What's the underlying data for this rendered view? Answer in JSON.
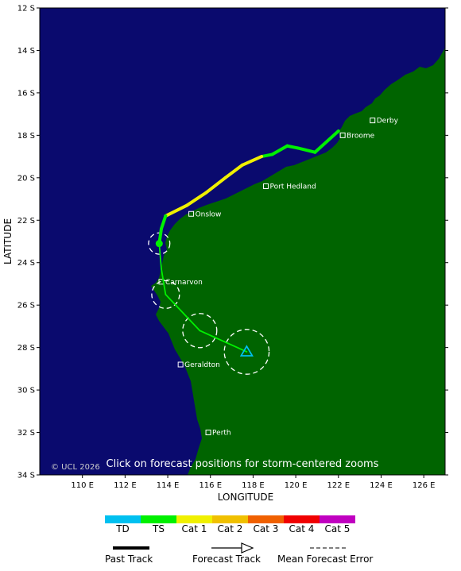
{
  "map": {
    "lon_range": [
      108,
      127
    ],
    "lat_range": [
      -34,
      -12
    ],
    "colors": {
      "ocean": "#0a0a6e",
      "land": "#006400"
    },
    "lat_ticks": [
      {
        "lat": -12,
        "label": "12 S"
      },
      {
        "lat": -14,
        "label": "14 S"
      },
      {
        "lat": -16,
        "label": "16 S"
      },
      {
        "lat": -18,
        "label": "18 S"
      },
      {
        "lat": -20,
        "label": "20 S"
      },
      {
        "lat": -22,
        "label": "22 S"
      },
      {
        "lat": -24,
        "label": "24 S"
      },
      {
        "lat": -26,
        "label": "26 S"
      },
      {
        "lat": -28,
        "label": "28 S"
      },
      {
        "lat": -30,
        "label": "30 S"
      },
      {
        "lat": -32,
        "label": "32 S"
      },
      {
        "lat": -34,
        "label": "34 S"
      }
    ],
    "lon_ticks": [
      {
        "lon": 110,
        "label": "110 E"
      },
      {
        "lon": 112,
        "label": "112 E"
      },
      {
        "lon": 114,
        "label": "114 E"
      },
      {
        "lon": 116,
        "label": "116 E"
      },
      {
        "lon": 118,
        "label": "118 E"
      },
      {
        "lon": 120,
        "label": "120 E"
      },
      {
        "lon": 122,
        "label": "122 E"
      },
      {
        "lon": 124,
        "label": "124 E"
      },
      {
        "lon": 126,
        "label": "126 E"
      }
    ],
    "xlabel": "LONGITUDE",
    "ylabel": "LATITUDE",
    "notice": "Click on forecast positions for storm-centered zooms",
    "copyright": "© UCL 2026",
    "cities": [
      {
        "name": "Derby",
        "lon": 123.6,
        "lat": -17.3
      },
      {
        "name": "Broome",
        "lon": 122.2,
        "lat": -18.0
      },
      {
        "name": "Port Hedland",
        "lon": 118.6,
        "lat": -20.4
      },
      {
        "name": "Onslow",
        "lon": 115.1,
        "lat": -21.7
      },
      {
        "name": "Carnarvon",
        "lon": 113.7,
        "lat": -24.9
      },
      {
        "name": "Geraldton",
        "lon": 114.6,
        "lat": -28.8
      },
      {
        "name": "Perth",
        "lon": 115.9,
        "lat": -32.0
      }
    ],
    "past_track": [
      {
        "lon": 122.0,
        "lat": -17.8,
        "cat": "TD"
      },
      {
        "lon": 120.9,
        "lat": -18.8,
        "cat": "TS"
      },
      {
        "lon": 120.1,
        "lat": -18.6,
        "cat": "TS"
      },
      {
        "lon": 119.6,
        "lat": -18.5,
        "cat": "TS"
      },
      {
        "lon": 118.9,
        "lat": -18.9,
        "cat": "TS"
      },
      {
        "lon": 118.4,
        "lat": -19.0,
        "cat": "TS"
      },
      {
        "lon": 117.5,
        "lat": -19.4,
        "cat": "Cat 1"
      },
      {
        "lon": 116.7,
        "lat": -20.0,
        "cat": "Cat 1"
      },
      {
        "lon": 115.8,
        "lat": -20.7,
        "cat": "Cat 1"
      },
      {
        "lon": 114.9,
        "lat": -21.3,
        "cat": "Cat 1"
      },
      {
        "lon": 113.9,
        "lat": -21.8,
        "cat": "Cat 1"
      },
      {
        "lon": 113.7,
        "lat": -22.4,
        "cat": "TS"
      },
      {
        "lon": 113.6,
        "lat": -23.1,
        "cat": "TS"
      }
    ],
    "forecast_track": [
      {
        "lon": 113.6,
        "lat": -23.1,
        "cat": "TS"
      },
      {
        "lon": 113.7,
        "lat": -24.3,
        "cat": "TS"
      },
      {
        "lon": 113.9,
        "lat": -25.5,
        "cat": "TS"
      },
      {
        "lon": 115.5,
        "lat": -27.2,
        "cat": "TS"
      },
      {
        "lon": 117.7,
        "lat": -28.2,
        "cat": "TS"
      }
    ],
    "error_circles": [
      {
        "lon": 113.6,
        "lat": -23.1,
        "r": 0.5
      },
      {
        "lon": 113.9,
        "lat": -25.5,
        "r": 0.65
      },
      {
        "lon": 115.5,
        "lat": -27.2,
        "r": 0.8
      },
      {
        "lon": 117.7,
        "lat": -28.2,
        "r": 1.05
      }
    ],
    "current_position": {
      "lon": 113.6,
      "lat": -23.1
    },
    "final_marker": {
      "lon": 117.7,
      "lat": -28.2
    }
  },
  "legend": {
    "categories": [
      {
        "label": "TD",
        "color": "#00c0f0"
      },
      {
        "label": "TS",
        "color": "#00f000"
      },
      {
        "label": "Cat 1",
        "color": "#f0f000"
      },
      {
        "label": "Cat 2",
        "color": "#f0c000"
      },
      {
        "label": "Cat 3",
        "color": "#f06000"
      },
      {
        "label": "Cat 4",
        "color": "#f00000"
      },
      {
        "label": "Cat 5",
        "color": "#c000c0"
      }
    ],
    "past_track_label": "Past Track",
    "forecast_track_label": "Forecast Track",
    "error_label": "Mean Forecast Error"
  }
}
